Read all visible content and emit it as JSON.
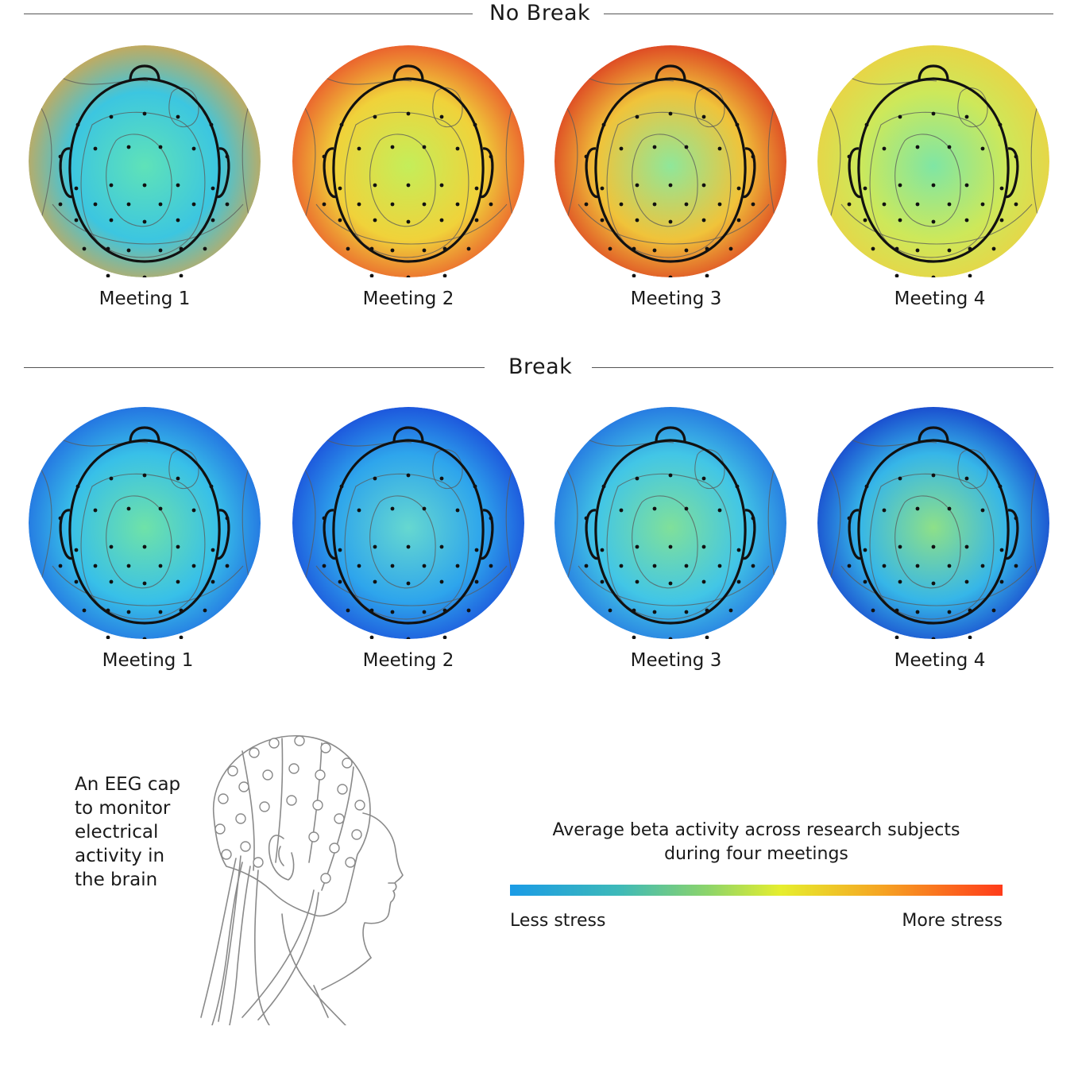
{
  "sections": [
    {
      "title": "No Break",
      "maps": [
        {
          "label": "Meeting 1",
          "stress_level": 0.35,
          "colors": [
            "#5fe2b8",
            "#3cc6e0",
            "#e9a23a"
          ]
        },
        {
          "label": "Meeting 2",
          "stress_level": 0.68,
          "colors": [
            "#c4ee5a",
            "#f0d23a",
            "#e9422a"
          ]
        },
        {
          "label": "Meeting 3",
          "stress_level": 0.72,
          "colors": [
            "#8fe79a",
            "#f0c33a",
            "#d9281e"
          ]
        },
        {
          "label": "Meeting 4",
          "stress_level": 0.52,
          "colors": [
            "#7fe6a4",
            "#cde85a",
            "#f0cf40"
          ]
        }
      ]
    },
    {
      "title": "Break",
      "maps": [
        {
          "label": "Meeting 1",
          "stress_level": 0.3,
          "colors": [
            "#6fe2a8",
            "#38c0e8",
            "#1e5fe0"
          ]
        },
        {
          "label": "Meeting 2",
          "stress_level": 0.2,
          "colors": [
            "#66d8d0",
            "#2ea5ec",
            "#1840d8"
          ]
        },
        {
          "label": "Meeting 3",
          "stress_level": 0.28,
          "colors": [
            "#80e09a",
            "#42c6e6",
            "#1f66e0"
          ]
        },
        {
          "label": "Meeting 4",
          "stress_level": 0.22,
          "colors": [
            "#8ee088",
            "#36b6e8",
            "#1230c8"
          ]
        }
      ]
    }
  ],
  "cap_caption": [
    "An EEG cap",
    "to monitor",
    "electrical",
    "activity in",
    "the brain"
  ],
  "legend": {
    "title_line1": "Average beta activity across research subjects",
    "title_line2": "during four meetings",
    "low_label": "Less stress",
    "high_label": "More stress",
    "gradient_colors": [
      "#1a9be6",
      "#8cd46b",
      "#e6ee2e",
      "#ff3b1a"
    ]
  }
}
